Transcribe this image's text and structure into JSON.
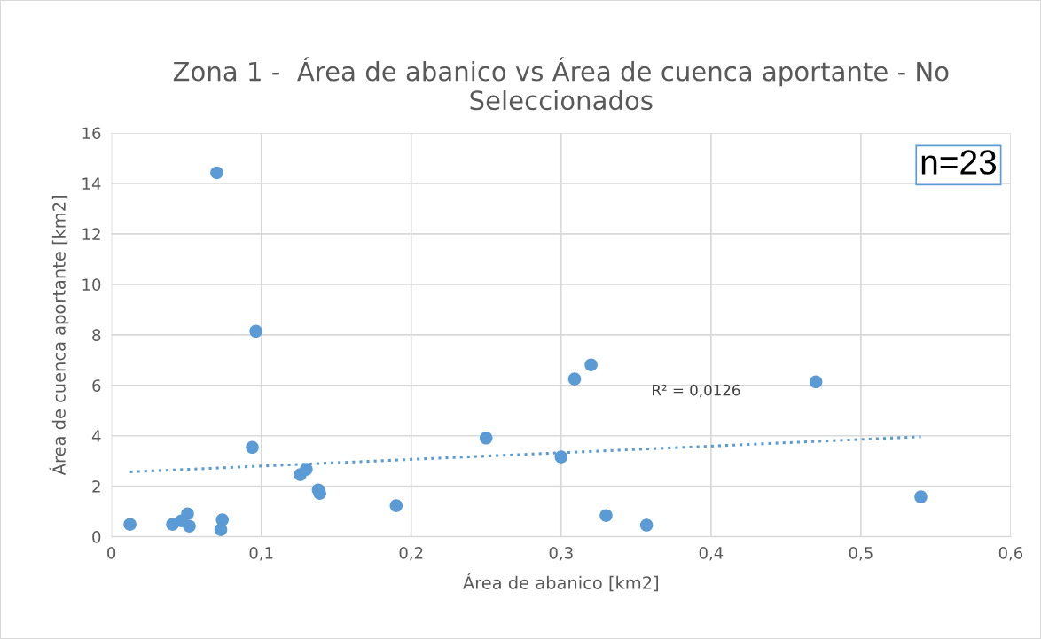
{
  "chart_data": {
    "type": "scatter",
    "title": "Zona 1 -  Área de abanico vs Área de cuenca aportante - No Seleccionados",
    "xlabel": "Área de abanico [km2]",
    "ylabel": "Área de cuenca aportante [km2]",
    "xlim": [
      0,
      0.6
    ],
    "xticks": [
      {
        "value": 0,
        "label": "0"
      },
      {
        "value": 0.1,
        "label": "0,1"
      },
      {
        "value": 0.2,
        "label": "0,2"
      },
      {
        "value": 0.3,
        "label": "0,3"
      },
      {
        "value": 0.4,
        "label": "0,4"
      },
      {
        "value": 0.5,
        "label": "0,5"
      },
      {
        "value": 0.6,
        "label": "0,6"
      }
    ],
    "ylim": [
      0,
      16
    ],
    "yticks": [
      0,
      2,
      4,
      6,
      8,
      10,
      12,
      14,
      16
    ],
    "grid": true,
    "series": [
      {
        "marker": "circle",
        "color": "#5b9bd5",
        "x": [
          0.0124,
          0.0703,
          0.0964,
          0.094,
          0.0408,
          0.0467,
          0.0508,
          0.052,
          0.073,
          0.074,
          0.126,
          0.13,
          0.138,
          0.139,
          0.19,
          0.25,
          0.3,
          0.309,
          0.32,
          0.33,
          0.357,
          0.47,
          0.54
        ],
        "values": [
          0.49,
          14.42,
          8.14,
          3.54,
          0.49,
          0.63,
          0.91,
          0.42,
          0.28,
          0.67,
          2.46,
          2.67,
          1.86,
          1.72,
          1.23,
          3.91,
          3.16,
          6.25,
          6.81,
          0.84,
          0.46,
          6.14,
          1.58
        ]
      },
      {
        "type": "line",
        "marker": "none",
        "color": "#5b9bd5",
        "line_style": "dotted",
        "x": [
          0.0124,
          0.54
        ],
        "values": [
          2.57,
          3.96
        ]
      }
    ],
    "annotations": [
      "R² = 0,0126",
      "n=23"
    ]
  }
}
